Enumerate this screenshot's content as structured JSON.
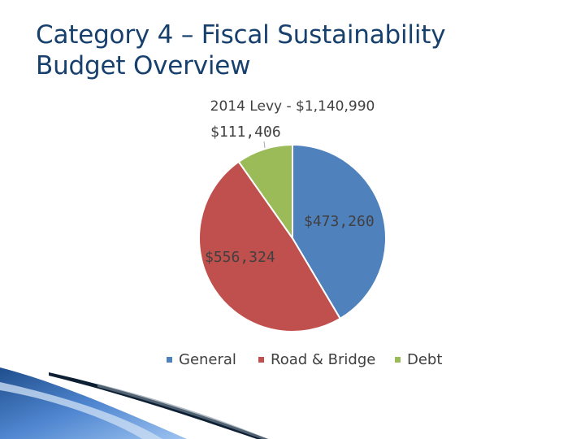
{
  "slide": {
    "title_line1": "Category 4 – Fiscal Sustainability",
    "title_line2": "Budget Overview"
  },
  "chart_data": {
    "type": "pie",
    "title": "2014 Levy - $1,140,990",
    "categories": [
      "General",
      "Road & Bridge",
      "Debt"
    ],
    "values": [
      473260,
      556324,
      111406
    ],
    "labels": [
      "$473,260",
      "$556,324",
      "$111,406"
    ],
    "colors": [
      "#4f81bd",
      "#c0504d",
      "#9bbb59"
    ],
    "legend_position": "bottom",
    "start_angle": "12 o'clock",
    "direction": "clockwise"
  }
}
